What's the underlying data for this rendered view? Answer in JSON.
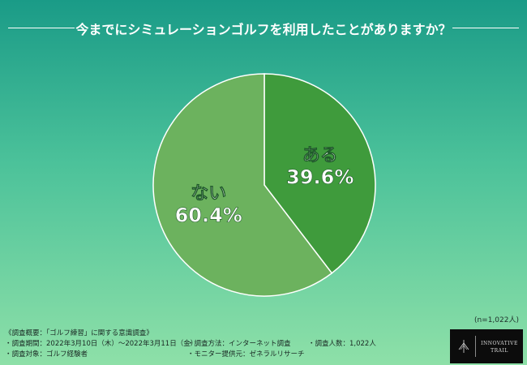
{
  "header": {
    "title": "今までにシミュレーションゴルフを利用したことがありますか？"
  },
  "chart_data": {
    "type": "pie",
    "title": "今までにシミュレーションゴルフを利用したことがありますか？",
    "slices": [
      {
        "label": "ある",
        "value": 39.6,
        "value_label": "39.6%",
        "color": "#3f9b3c"
      },
      {
        "label": "ない",
        "value": 60.4,
        "value_label": "60.4%",
        "color": "#6cb25e"
      }
    ],
    "n_label": "(n=1,022人)"
  },
  "footer": {
    "heading": "《調査概要：「ゴルフ練習」に関する意識調査》",
    "period": "・調査期間：2022年3月10日（木）〜2022年3月11日（金）",
    "target": "・調査対象：ゴルフ経験者",
    "method": "・調査方法：インターネット調査",
    "provider": "・モニター提供元：ゼネラルリサーチ",
    "count": "・調査人数：1,022人"
  },
  "logo": {
    "line1": "INNOVATIVE",
    "line2": "TRAIL",
    "icon": "logo-mark-icon"
  }
}
